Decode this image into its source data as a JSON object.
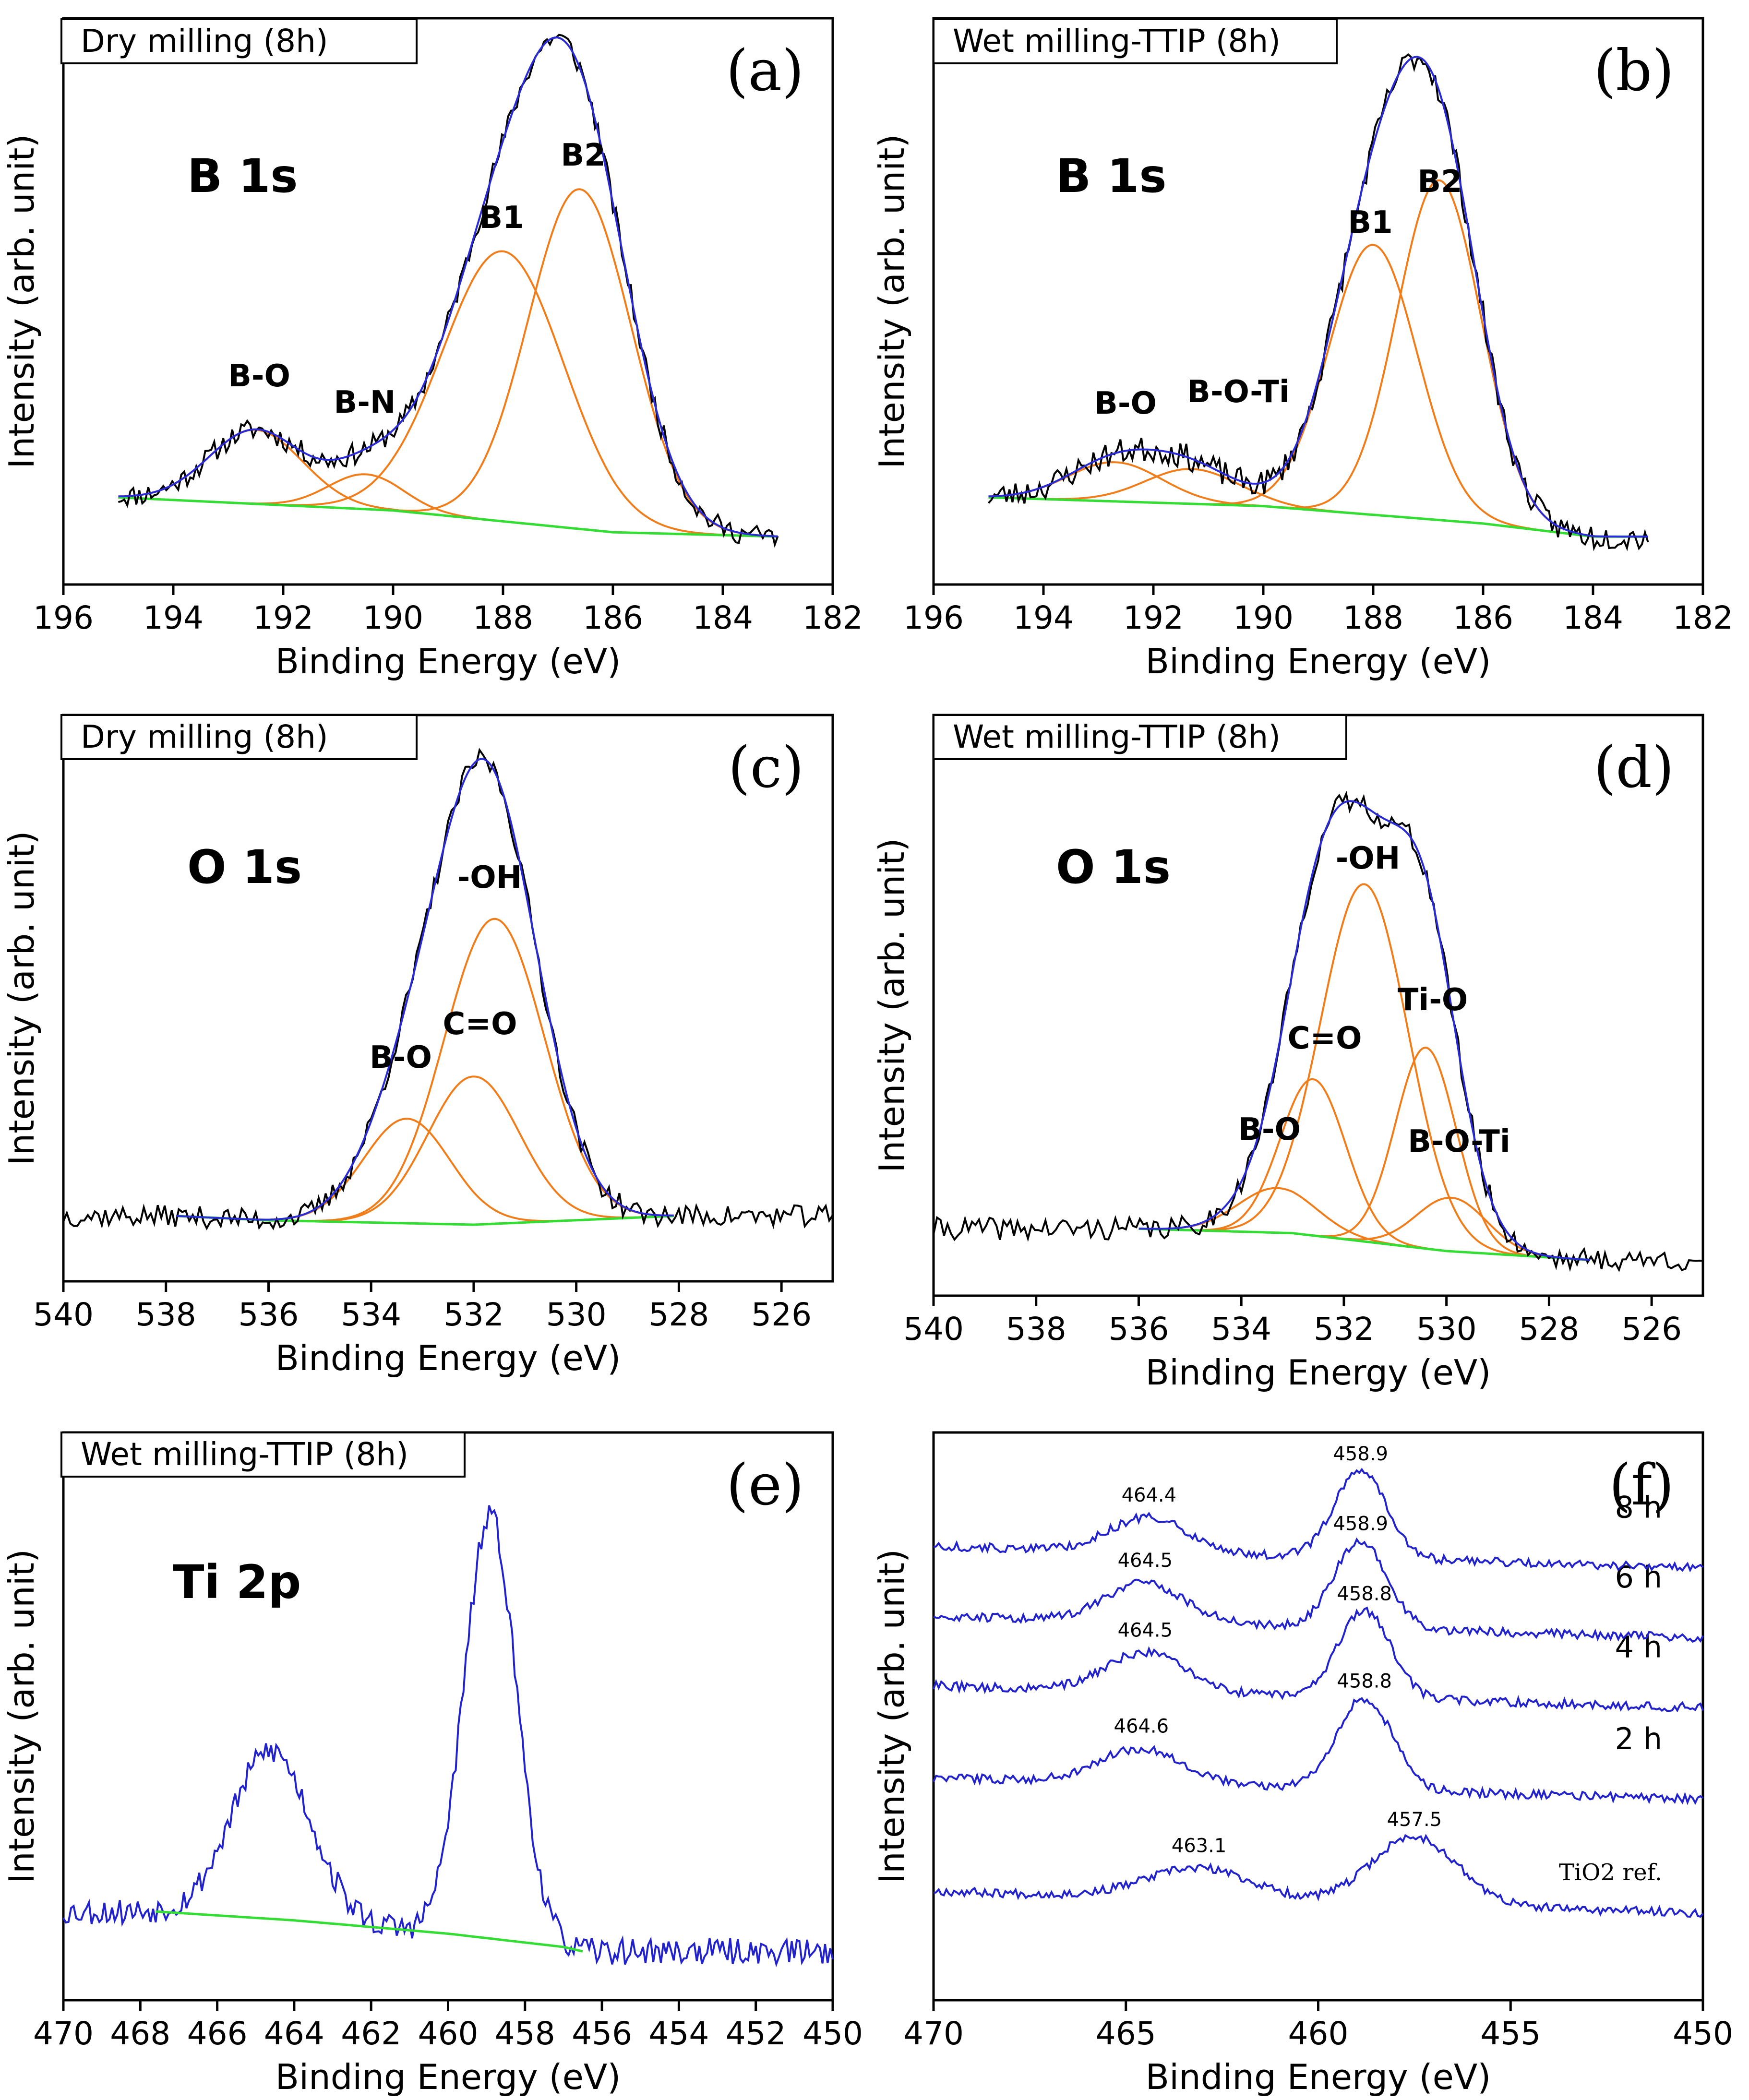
{
  "chart_data": [
    {
      "id": "a",
      "type": "line",
      "panel_label": "(a)",
      "sample": "Dry milling (8h)",
      "core_level": "B 1s",
      "xlabel": "Binding Energy (eV)",
      "ylabel": "Intensity (arb. unit)",
      "xlim": [
        196,
        182
      ],
      "xticks": [
        196,
        194,
        192,
        190,
        188,
        186,
        184,
        182
      ],
      "ylim": [
        -0.2,
        1.1
      ],
      "data_range": [
        195,
        183
      ],
      "noise": 0.025,
      "seed": 11,
      "background": [
        [
          195,
          0.0
        ],
        [
          190,
          -0.03
        ],
        [
          186,
          -0.08
        ],
        [
          183,
          -0.09
        ]
      ],
      "components": [
        {
          "label": "B-O",
          "center": 192.5,
          "height": 0.17,
          "fwhm": 2.0
        },
        {
          "label": "B-N",
          "center": 190.5,
          "height": 0.08,
          "fwhm": 1.6
        },
        {
          "label": "B1",
          "center": 188.0,
          "height": 0.62,
          "fwhm": 2.6
        },
        {
          "label": "B2",
          "center": 186.6,
          "height": 0.78,
          "fwhm": 2.2
        }
      ],
      "colors": {
        "data": "#000000",
        "fit": "#2b2bd6",
        "component": "#f07d1a",
        "background": "#33dd33"
      }
    },
    {
      "id": "b",
      "type": "line",
      "panel_label": "(b)",
      "sample": "Wet milling-TTIP (8h)",
      "core_level": "B 1s",
      "xlabel": "Binding Energy (eV)",
      "ylabel": "Intensity (arb. unit)",
      "xlim": [
        196,
        182
      ],
      "xticks": [
        196,
        194,
        192,
        190,
        188,
        186,
        184,
        182
      ],
      "ylim": [
        -0.2,
        1.1
      ],
      "data_range": [
        195,
        183
      ],
      "noise": 0.03,
      "seed": 23,
      "background": [
        [
          195,
          0.0
        ],
        [
          190,
          -0.02
        ],
        [
          186,
          -0.06
        ],
        [
          184,
          -0.09
        ],
        [
          183,
          -0.09
        ]
      ],
      "components": [
        {
          "label": "B-O",
          "center": 192.7,
          "height": 0.09,
          "fwhm": 2.0
        },
        {
          "label": "B-O-Ti",
          "center": 191.3,
          "height": 0.08,
          "fwhm": 2.0
        },
        {
          "label": "B1",
          "center": 188.0,
          "height": 0.62,
          "fwhm": 1.9
        },
        {
          "label": "B2",
          "center": 186.8,
          "height": 0.78,
          "fwhm": 1.8
        }
      ],
      "colors": {
        "data": "#000000",
        "fit": "#2b2bd6",
        "component": "#f07d1a",
        "background": "#33dd33"
      }
    },
    {
      "id": "c",
      "type": "line",
      "panel_label": "(c)",
      "sample": "Dry milling (8h)",
      "core_level": "O 1s",
      "xlabel": "Binding Energy (eV)",
      "ylabel": "Intensity (arb. unit)",
      "xlim": [
        540,
        525
      ],
      "xticks": [
        540,
        538,
        536,
        534,
        532,
        530,
        528,
        526
      ],
      "ylim": [
        -0.15,
        1.15
      ],
      "data_range": [
        540,
        525
      ],
      "fit_range": [
        537.8,
        528.1
      ],
      "noise": 0.025,
      "seed": 37,
      "background": [
        [
          537.8,
          0.0
        ],
        [
          536,
          -0.01
        ],
        [
          532,
          -0.02
        ],
        [
          528.1,
          0.0
        ]
      ],
      "components": [
        {
          "label": "B-O",
          "center": 533.3,
          "height": 0.24,
          "fwhm": 2.0
        },
        {
          "label": "C=O",
          "center": 532.0,
          "height": 0.34,
          "fwhm": 2.1
        },
        {
          "label": "-OH",
          "center": 531.6,
          "height": 0.7,
          "fwhm": 2.3
        }
      ],
      "colors": {
        "data": "#000000",
        "fit": "#2b2bd6",
        "component": "#f07d1a",
        "background": "#33dd33"
      }
    },
    {
      "id": "d",
      "type": "line",
      "panel_label": "(d)",
      "sample": "Wet milling-TTIP (8h)",
      "core_level": "O 1s",
      "xlabel": "Binding Energy (eV)",
      "ylabel": "Intensity (arb. unit)",
      "xlim": [
        540,
        525
      ],
      "xticks": [
        540,
        538,
        536,
        534,
        532,
        530,
        528,
        526
      ],
      "ylim": [
        -0.15,
        1.15
      ],
      "data_range": [
        540,
        525
      ],
      "fit_range": [
        536.0,
        527.2
      ],
      "noise": 0.025,
      "seed": 41,
      "background": [
        [
          536,
          0.0
        ],
        [
          533,
          -0.01
        ],
        [
          530,
          -0.05
        ],
        [
          527.2,
          -0.07
        ]
      ],
      "components": [
        {
          "label": "B-O",
          "center": 533.3,
          "height": 0.1,
          "fwhm": 1.8
        },
        {
          "label": "C=O",
          "center": 532.6,
          "height": 0.35,
          "fwhm": 1.5
        },
        {
          "label": "-OH",
          "center": 531.6,
          "height": 0.8,
          "fwhm": 2.0
        },
        {
          "label": "Ti-O",
          "center": 530.4,
          "height": 0.45,
          "fwhm": 1.4
        },
        {
          "label": "B-O-Ti",
          "center": 529.9,
          "height": 0.12,
          "fwhm": 1.6
        }
      ],
      "colors": {
        "data": "#000000",
        "fit": "#2b2bd6",
        "component": "#f07d1a",
        "background": "#33dd33"
      }
    },
    {
      "id": "e",
      "type": "line",
      "panel_label": "(e)",
      "sample": "Wet milling-TTIP (8h)",
      "core_level": "Ti 2p",
      "xlabel": "Binding Energy (eV)",
      "ylabel": "Intensity (arb. unit)",
      "xlim": [
        470,
        450
      ],
      "xticks": [
        470,
        468,
        466,
        464,
        462,
        460,
        458,
        456,
        454,
        452,
        450
      ],
      "ylim": [
        -0.2,
        1.08
      ],
      "data_range": [
        470,
        450
      ],
      "noise": 0.03,
      "seed": 53,
      "background_range": [
        467.6,
        456.5
      ],
      "background": [
        [
          467.6,
          0.0
        ],
        [
          464,
          -0.02
        ],
        [
          460,
          -0.05
        ],
        [
          457,
          -0.08
        ],
        [
          456.5,
          -0.09
        ]
      ],
      "peaks": [
        {
          "center": 464.6,
          "height": 0.38,
          "fwhm": 2.4
        },
        {
          "center": 458.9,
          "height": 0.95,
          "fwhm": 1.6
        }
      ],
      "colors": {
        "data": "#2222cc",
        "background": "#33dd33"
      }
    },
    {
      "id": "f",
      "type": "line",
      "panel_label": "(f)",
      "xlabel": "Binding Energy (eV)",
      "ylabel": "Intensity (arb. unit)",
      "xlim": [
        470,
        450
      ],
      "xticks": [
        470,
        465,
        460,
        455,
        450
      ],
      "ylim": [
        -1.0,
        5.5
      ],
      "data_range": [
        470,
        450
      ],
      "noise": 0.05,
      "seed": 67,
      "series": [
        {
          "name": "TiO2 ref.",
          "offset": 0.0,
          "p2p1": {
            "center": 463.1,
            "height": 0.35
          },
          "p2p3": {
            "center": 457.5,
            "height": 0.78
          },
          "width1": 3.2,
          "width3": 2.6,
          "labels": [
            "463.1",
            "457.5"
          ]
        },
        {
          "name": "2 h",
          "offset": 1.3,
          "p2p1": {
            "center": 464.6,
            "height": 0.4
          },
          "p2p3": {
            "center": 458.8,
            "height": 1.05
          },
          "width1": 2.6,
          "width3": 1.7,
          "labels": [
            "464.6",
            "458.8"
          ]
        },
        {
          "name": "4 h",
          "offset": 2.35,
          "p2p1": {
            "center": 464.5,
            "height": 0.45
          },
          "p2p3": {
            "center": 458.8,
            "height": 1.0
          },
          "width1": 2.4,
          "width3": 1.6,
          "labels": [
            "464.5",
            "458.8"
          ]
        },
        {
          "name": "6 h",
          "offset": 3.15,
          "p2p1": {
            "center": 464.5,
            "height": 0.45
          },
          "p2p3": {
            "center": 458.9,
            "height": 1.0
          },
          "width1": 2.4,
          "width3": 1.6,
          "labels": [
            "464.5",
            "458.9"
          ]
        },
        {
          "name": "8 h",
          "offset": 3.95,
          "p2p1": {
            "center": 464.4,
            "height": 0.4
          },
          "p2p3": {
            "center": 458.9,
            "height": 1.0
          },
          "width1": 2.4,
          "width3": 1.6,
          "labels": [
            "464.4",
            "458.9"
          ]
        }
      ],
      "colors": {
        "data": "#2222cc"
      }
    }
  ]
}
